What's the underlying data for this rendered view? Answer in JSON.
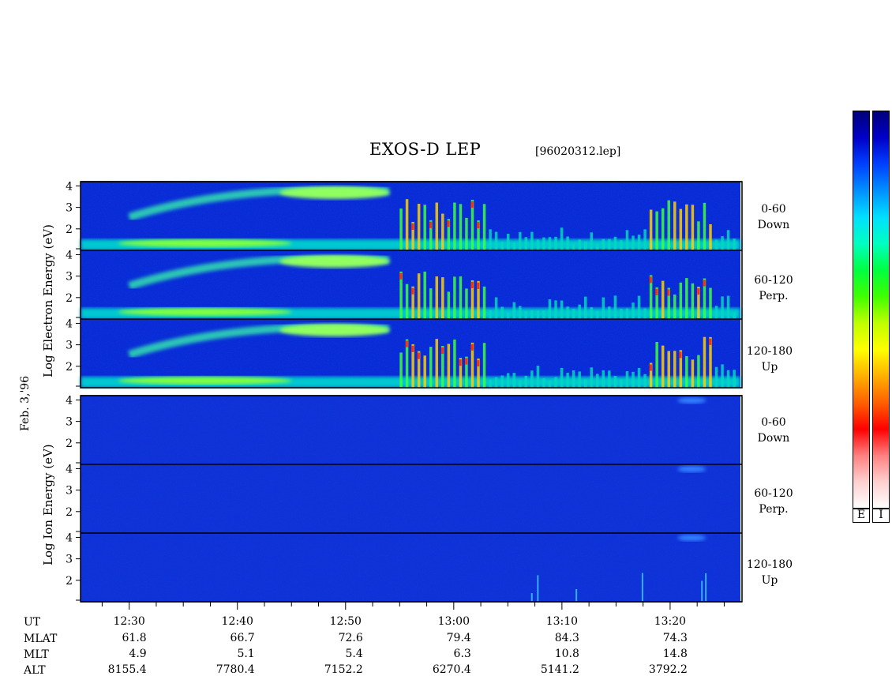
{
  "header": {
    "title": "EXOS-D LEP",
    "filename": "[96020312.lep]"
  },
  "date_label": "Feb. 3,'96",
  "electron_group": {
    "ylabel": "Log  Electron  Energy (eV)",
    "panels": [
      {
        "line1": "0-60",
        "line2": "Down"
      },
      {
        "line1": "60-120",
        "line2": "Perp."
      },
      {
        "line1": "120-180",
        "line2": "Up"
      }
    ]
  },
  "ion_group": {
    "ylabel": "Log  Ion  Energy (eV)",
    "panels": [
      {
        "line1": "0-60",
        "line2": "Down"
      },
      {
        "line1": "60-120",
        "line2": "Perp."
      },
      {
        "line1": "120-180",
        "line2": "Up"
      }
    ]
  },
  "colorbar": {
    "labels": [
      "E",
      "I"
    ],
    "colors": [
      "#00007a",
      "#0000c8",
      "#0040ff",
      "#0090ff",
      "#00e0ff",
      "#00ffc0",
      "#00ff40",
      "#40ff00",
      "#c0ff00",
      "#ffff00",
      "#ffb000",
      "#ff6000",
      "#ff0000",
      "#ff8080",
      "#ffd0d0",
      "#ffffff"
    ]
  },
  "chart_data": {
    "type": "heatmap",
    "title": "EXOS-D LEP",
    "ylim": [
      1,
      4.2
    ],
    "ytick_labels": [
      "4",
      "3",
      "2"
    ],
    "y_ticks": [
      4,
      3,
      2
    ],
    "x_range_minutes": [
      25.5,
      86.5
    ],
    "x_ticks_minutes": [
      30,
      40,
      50,
      60,
      70,
      80
    ],
    "x_tick_labels": [
      "12:30",
      "12:40",
      "12:50",
      "13:00",
      "13:10",
      "13:20"
    ],
    "orbit_table": {
      "row_labels": [
        "UT",
        "MLAT",
        "MLT",
        "ALT"
      ],
      "mlat": [
        "61.8",
        "66.7",
        "72.6",
        "79.4",
        "84.3",
        "74.3"
      ],
      "mlt": [
        "4.9",
        "5.1",
        "5.4",
        "6.3",
        "10.8",
        "14.8"
      ],
      "alt": [
        "8155.4",
        "7780.4",
        "7152.2",
        "6270.4",
        "5141.2",
        "3792.2"
      ]
    },
    "panels": [
      "Electron 0-60 Down",
      "Electron 60-120 Perp.",
      "Electron 120-180 Up",
      "Ion 0-60 Down",
      "Ion 60-120 Perp.",
      "Ion 120-180 Up"
    ]
  }
}
